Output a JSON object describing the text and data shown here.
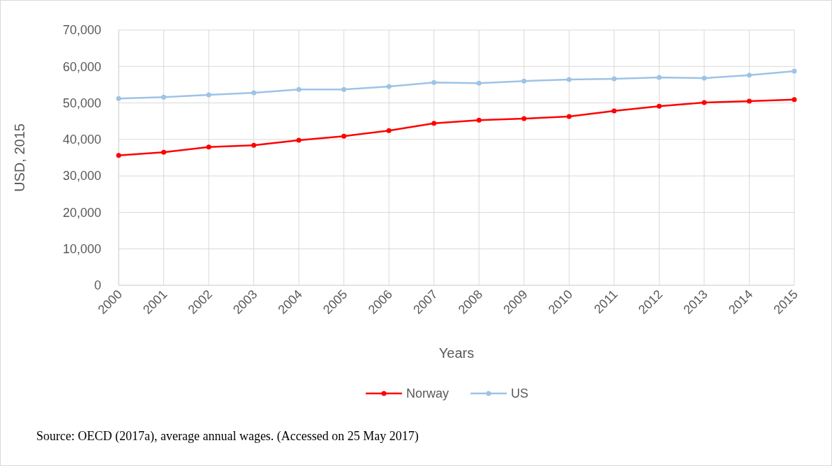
{
  "chart_data": {
    "type": "line",
    "xlabel": "Years",
    "ylabel": "USD, 2015",
    "categories": [
      "2000",
      "2001",
      "2002",
      "2003",
      "2004",
      "2005",
      "2006",
      "2007",
      "2008",
      "2009",
      "2010",
      "2011",
      "2012",
      "2013",
      "2014",
      "2015"
    ],
    "series": [
      {
        "name": "Norway",
        "color": "#ff0000",
        "values": [
          35600,
          36500,
          37900,
          38400,
          39800,
          40900,
          42400,
          44400,
          45300,
          45700,
          46300,
          47800,
          49100,
          50100,
          50500,
          50900
        ]
      },
      {
        "name": "US",
        "color": "#9dc3e6",
        "values": [
          51200,
          51600,
          52200,
          52800,
          53700,
          53700,
          54500,
          55600,
          55400,
          56000,
          56400,
          56600,
          57000,
          56800,
          57600,
          58700
        ]
      }
    ],
    "ylim": [
      0,
      70000
    ],
    "yticks": [
      {
        "value": 0,
        "label": "0"
      },
      {
        "value": 10000,
        "label": "10,000"
      },
      {
        "value": 20000,
        "label": "20,000"
      },
      {
        "value": 30000,
        "label": "30,000"
      },
      {
        "value": 40000,
        "label": "40,000"
      },
      {
        "value": 50000,
        "label": "50,000"
      },
      {
        "value": 60000,
        "label": "60,000"
      },
      {
        "value": 70000,
        "label": "70,000"
      }
    ],
    "grid": true,
    "legend": "bottom",
    "marker": "circle",
    "line_style": "solid",
    "annotations": [
      "Source: OECD (2017a), average annual wages. (Accessed on 25 May 2017)"
    ]
  }
}
